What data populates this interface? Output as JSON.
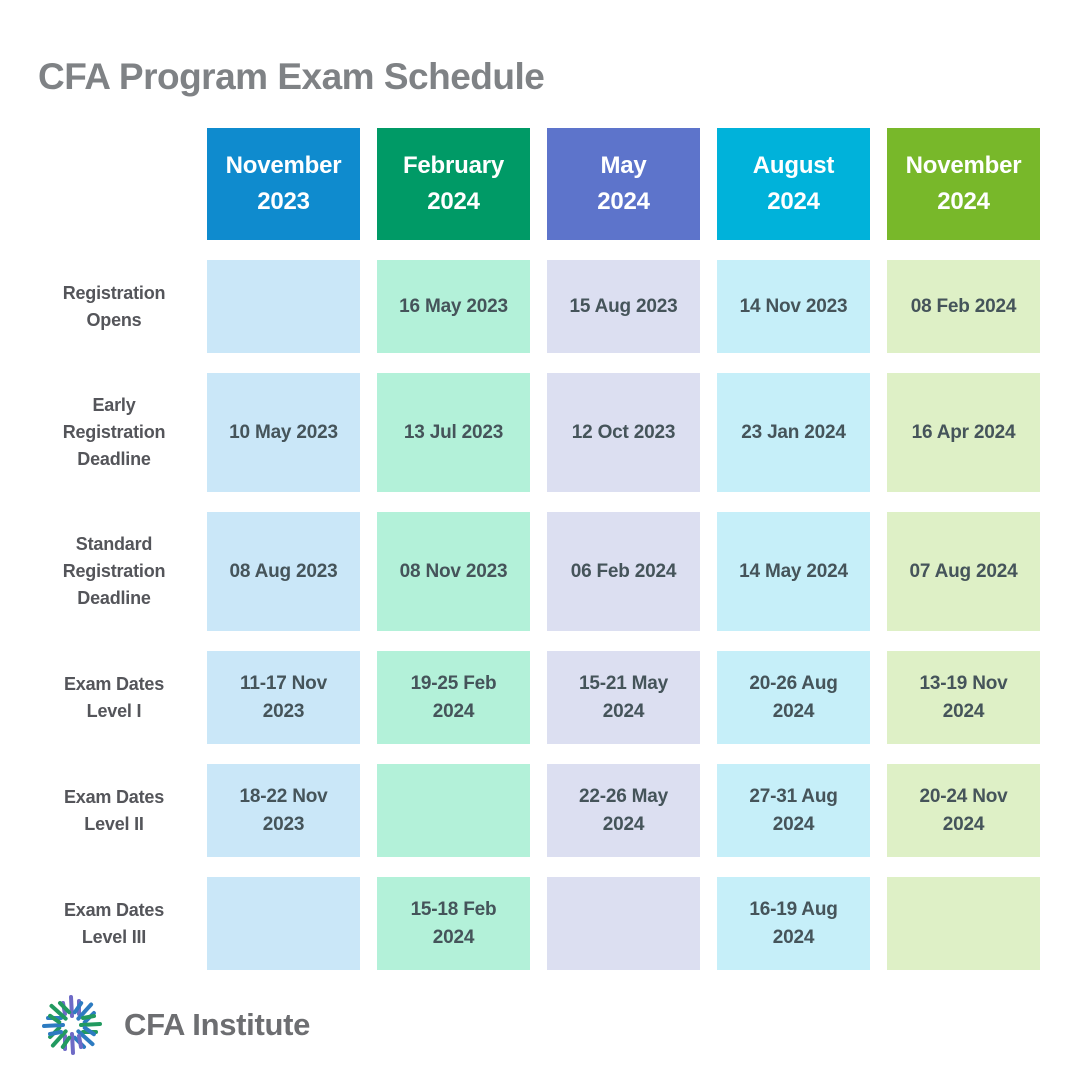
{
  "title": "CFA Program Exam Schedule",
  "columns": [
    {
      "month": "November",
      "year": "2023",
      "header_color": "#0f8bce",
      "cell_color": "#cae7f8"
    },
    {
      "month": "February",
      "year": "2024",
      "header_color": "#009a66",
      "cell_color": "#b3f1d9"
    },
    {
      "month": "May",
      "year": "2024",
      "header_color": "#5d74cb",
      "cell_color": "#dcdff1"
    },
    {
      "month": "August",
      "year": "2024",
      "header_color": "#00b2da",
      "cell_color": "#c6eff9"
    },
    {
      "month": "November",
      "year": "2024",
      "header_color": "#78b82a",
      "cell_color": "#def0c6"
    }
  ],
  "rows": [
    {
      "label": [
        "Registration",
        "Opens"
      ],
      "cells": [
        [],
        [
          "16 May 2023"
        ],
        [
          "15 Aug 2023"
        ],
        [
          "14 Nov 2023"
        ],
        [
          "08 Feb 2024"
        ]
      ]
    },
    {
      "label": [
        "Early",
        "Registration",
        "Deadline"
      ],
      "cells": [
        [
          "10 May 2023"
        ],
        [
          "13 Jul 2023"
        ],
        [
          "12 Oct 2023"
        ],
        [
          "23 Jan 2024"
        ],
        [
          "16 Apr 2024"
        ]
      ]
    },
    {
      "label": [
        "Standard",
        "Registration",
        "Deadline"
      ],
      "cells": [
        [
          "08 Aug 2023"
        ],
        [
          "08 Nov 2023"
        ],
        [
          "06 Feb 2024"
        ],
        [
          "14 May 2024"
        ],
        [
          "07 Aug 2024"
        ]
      ]
    },
    {
      "label": [
        "Exam Dates",
        "Level I"
      ],
      "cells": [
        [
          "11-17 Nov",
          "2023"
        ],
        [
          "19-25 Feb",
          "2024"
        ],
        [
          "15-21 May",
          "2024"
        ],
        [
          "20-26 Aug",
          "2024"
        ],
        [
          "13-19 Nov",
          "2024"
        ]
      ]
    },
    {
      "label": [
        "Exam Dates",
        "Level II"
      ],
      "cells": [
        [
          "18-22 Nov",
          "2023"
        ],
        [],
        [
          "22-26 May",
          "2024"
        ],
        [
          "27-31 Aug",
          "2024"
        ],
        [
          "20-24 Nov",
          "2024"
        ]
      ]
    },
    {
      "label": [
        "Exam Dates",
        "Level III"
      ],
      "cells": [
        [],
        [
          "15-18 Feb",
          "2024"
        ],
        [],
        [
          "16-19 Aug",
          "2024"
        ],
        []
      ]
    }
  ],
  "footer": {
    "logo_text": "CFA Institute"
  },
  "chart_data": {
    "type": "table",
    "title": "CFA Program Exam Schedule",
    "columns": [
      "November 2023",
      "February 2024",
      "May 2024",
      "August 2024",
      "November 2024"
    ],
    "row_labels": [
      "Registration Opens",
      "Early Registration Deadline",
      "Standard Registration Deadline",
      "Exam Dates Level I",
      "Exam Dates Level II",
      "Exam Dates Level III"
    ],
    "rows": [
      [
        "",
        "16 May 2023",
        "15 Aug 2023",
        "14 Nov 2023",
        "08 Feb 2024"
      ],
      [
        "10 May 2023",
        "13 Jul 2023",
        "12 Oct 2023",
        "23 Jan 2024",
        "16 Apr 2024"
      ],
      [
        "08 Aug 2023",
        "08 Nov 2023",
        "06 Feb 2024",
        "14 May 2024",
        "07 Aug 2024"
      ],
      [
        "11-17 Nov 2023",
        "19-25 Feb 2024",
        "15-21 May 2024",
        "20-26 Aug 2024",
        "13-19 Nov 2024"
      ],
      [
        "18-22 Nov 2023",
        "",
        "22-26 May 2024",
        "27-31 Aug 2024",
        "20-24 Nov 2024"
      ],
      [
        "",
        "15-18 Feb 2024",
        "",
        "16-19 Aug 2024",
        ""
      ]
    ],
    "header_colors": [
      "#0f8bce",
      "#009a66",
      "#5d74cb",
      "#00b2da",
      "#78b82a"
    ],
    "cell_colors": [
      "#cae7f8",
      "#b3f1d9",
      "#dcdff1",
      "#c6eff9",
      "#def0c6"
    ]
  }
}
